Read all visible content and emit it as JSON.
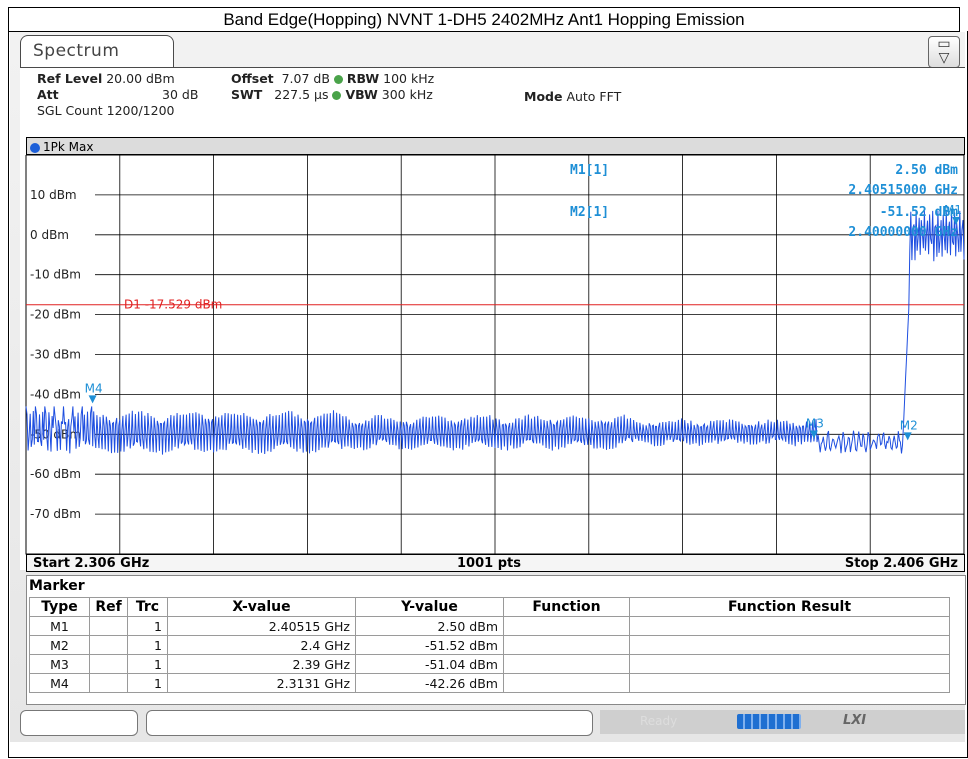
{
  "caption": "Band Edge(Hopping) NVNT 1-DH5 2402MHz Ant1 Hopping Emission",
  "tab": {
    "label": "Spectrum"
  },
  "setup": {
    "ref_level_label": "Ref Level",
    "ref_level_value": "20.00 dBm",
    "offset_label": "Offset",
    "offset_value": "7.07 dB",
    "rbw_label": "RBW",
    "rbw_value": "100 kHz",
    "att_label": "Att",
    "att_value": "30 dB",
    "swt_label": "SWT",
    "swt_value": "227.5 µs",
    "vbw_label": "VBW",
    "vbw_value": "300 kHz",
    "mode_label": "Mode",
    "mode_value": "Auto FFT",
    "sgl_count": "SGL Count 1200/1200"
  },
  "trace_label": "1Pk Max",
  "marker_info": {
    "m1_label": "M1[1]",
    "m1_level": "2.50 dBm",
    "m1_freq": "2.40515000 GHz",
    "m2_label": "M2[1]",
    "m2_level": "-51.52 dBm",
    "m2_freq": "2.40000000 GHz"
  },
  "display_line": {
    "label": "D1  -17.529 dBm",
    "level": -17.529
  },
  "footer": {
    "start": "Start 2.306 GHz",
    "points": "1001 pts",
    "stop": "Stop 2.406 GHz"
  },
  "marker_table": {
    "title": "Marker",
    "headers": [
      "Type",
      "Ref",
      "Trc",
      "X-value",
      "Y-value",
      "Function",
      "Function Result"
    ],
    "rows": [
      {
        "type": "M1",
        "ref": "",
        "trc": "1",
        "x": "2.40515 GHz",
        "y": "2.50 dBm",
        "func": "",
        "result": ""
      },
      {
        "type": "M2",
        "ref": "",
        "trc": "1",
        "x": "2.4 GHz",
        "y": "-51.52 dBm",
        "func": "",
        "result": ""
      },
      {
        "type": "M3",
        "ref": "",
        "trc": "1",
        "x": "2.39 GHz",
        "y": "-51.04 dBm",
        "func": "",
        "result": ""
      },
      {
        "type": "M4",
        "ref": "",
        "trc": "1",
        "x": "2.3131 GHz",
        "y": "-42.26 dBm",
        "func": "",
        "result": ""
      }
    ]
  },
  "status": {
    "ready": "Ready",
    "lxi": "LXI"
  },
  "chart_data": {
    "type": "line",
    "x_range_ghz": [
      2.306,
      2.406
    ],
    "ylim": [
      -80,
      20
    ],
    "y_tick_labels": [
      "10 dBm",
      "0 dBm",
      "-10 dBm",
      "-20 dBm",
      "-30 dBm",
      "-40 dBm",
      "-50 dBm",
      "-60 dBm",
      "-70 dBm"
    ],
    "y_tick_values": [
      10,
      0,
      -10,
      -20,
      -30,
      -40,
      -50,
      -60,
      -70
    ],
    "markers": [
      {
        "name": "M1",
        "x": 2.40515,
        "y": 2.5
      },
      {
        "name": "M2",
        "x": 2.4,
        "y": -51.52
      },
      {
        "name": "M3",
        "x": 2.39,
        "y": -51.04
      },
      {
        "name": "M4",
        "x": 2.3131,
        "y": -42.26
      }
    ],
    "colors": {
      "trace": "#1f4fe0",
      "marker": "#1e8fd6",
      "display_line": "#e02020"
    }
  }
}
